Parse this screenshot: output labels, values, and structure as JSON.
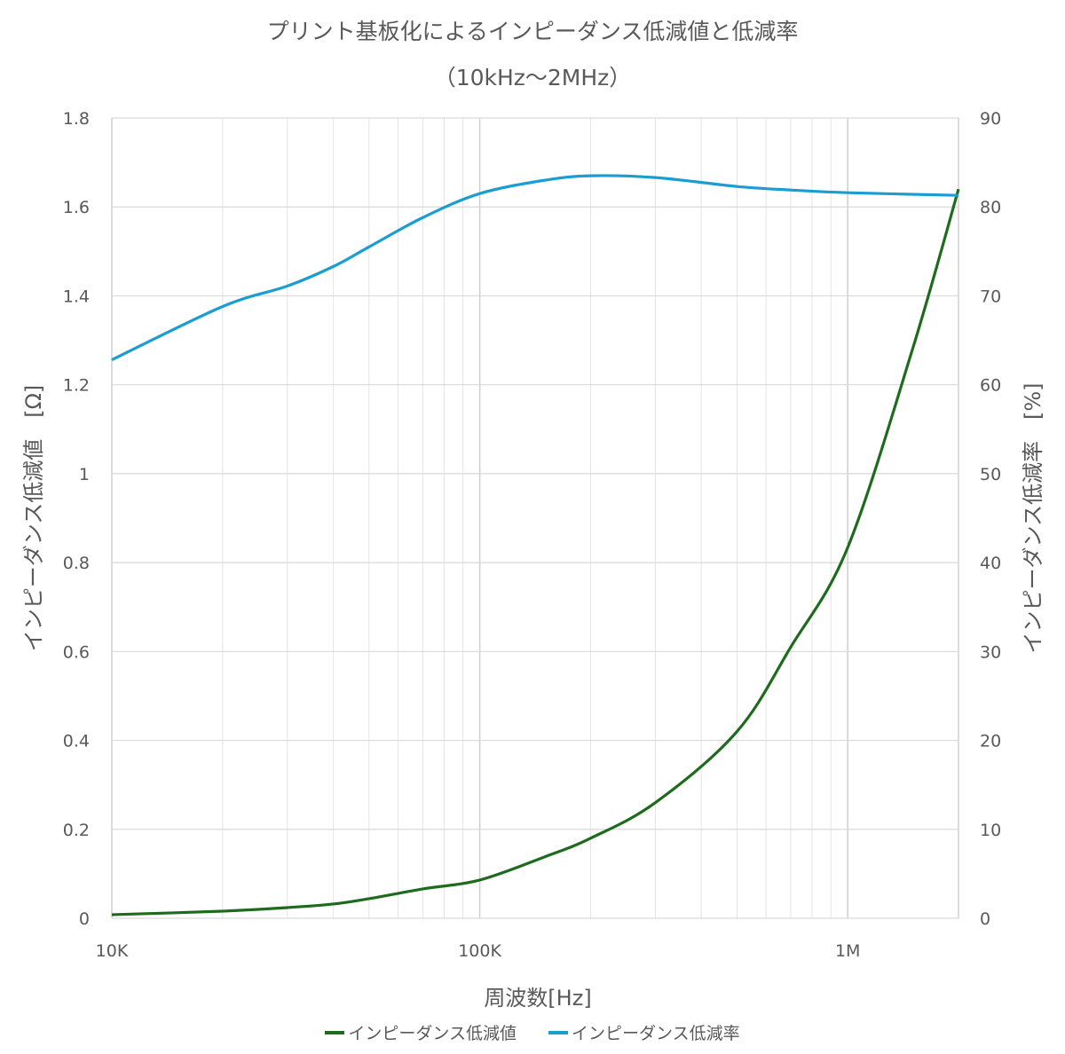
{
  "chart_data": {
    "type": "line",
    "title": "プリント基板化によるインピーダンス低減値と低減率",
    "subtitle": "（10kHz～2MHz）",
    "xlabel": "周波数[Hz]",
    "ylabel": "インピーダンス低減値　[Ω]",
    "y2label": "インピーダンス低減率　[%]",
    "xscale": "log",
    "xlim": [
      10000,
      2000000
    ],
    "ylim": [
      0,
      1.8
    ],
    "y2lim": [
      0,
      90
    ],
    "grid": true,
    "legend_position": "bottom",
    "x_ticks": [
      {
        "value": 10000,
        "label": "10K"
      },
      {
        "value": 100000,
        "label": "100K"
      },
      {
        "value": 1000000,
        "label": "1M"
      }
    ],
    "y_ticks": [
      "0",
      "0.2",
      "0.4",
      "0.6",
      "0.8",
      "1",
      "1.2",
      "1.4",
      "1.6",
      "1.8"
    ],
    "y2_ticks": [
      "0",
      "10",
      "20",
      "30",
      "40",
      "50",
      "60",
      "70",
      "80",
      "90"
    ],
    "series": [
      {
        "name": "インピーダンス低減値",
        "axis": "left",
        "color": "#1e6b1e",
        "x": [
          10000,
          20000,
          30000,
          40000,
          50000,
          70000,
          100000,
          150000,
          200000,
          300000,
          500000,
          700000,
          1000000,
          1500000,
          2000000
        ],
        "y": [
          0.008,
          0.016,
          0.024,
          0.032,
          0.044,
          0.066,
          0.086,
          0.138,
          0.18,
          0.26,
          0.42,
          0.61,
          0.834,
          1.28,
          1.64
        ]
      },
      {
        "name": "インピーダンス低減率",
        "axis": "right",
        "color": "#1a9dd1",
        "x": [
          10000,
          20000,
          30000,
          40000,
          50000,
          70000,
          100000,
          150000,
          200000,
          300000,
          500000,
          700000,
          1000000,
          2000000
        ],
        "y": [
          62.8,
          68.8,
          71.1,
          73.3,
          75.5,
          78.8,
          81.5,
          83.0,
          83.5,
          83.3,
          82.3,
          81.9,
          81.6,
          81.3
        ]
      }
    ]
  }
}
